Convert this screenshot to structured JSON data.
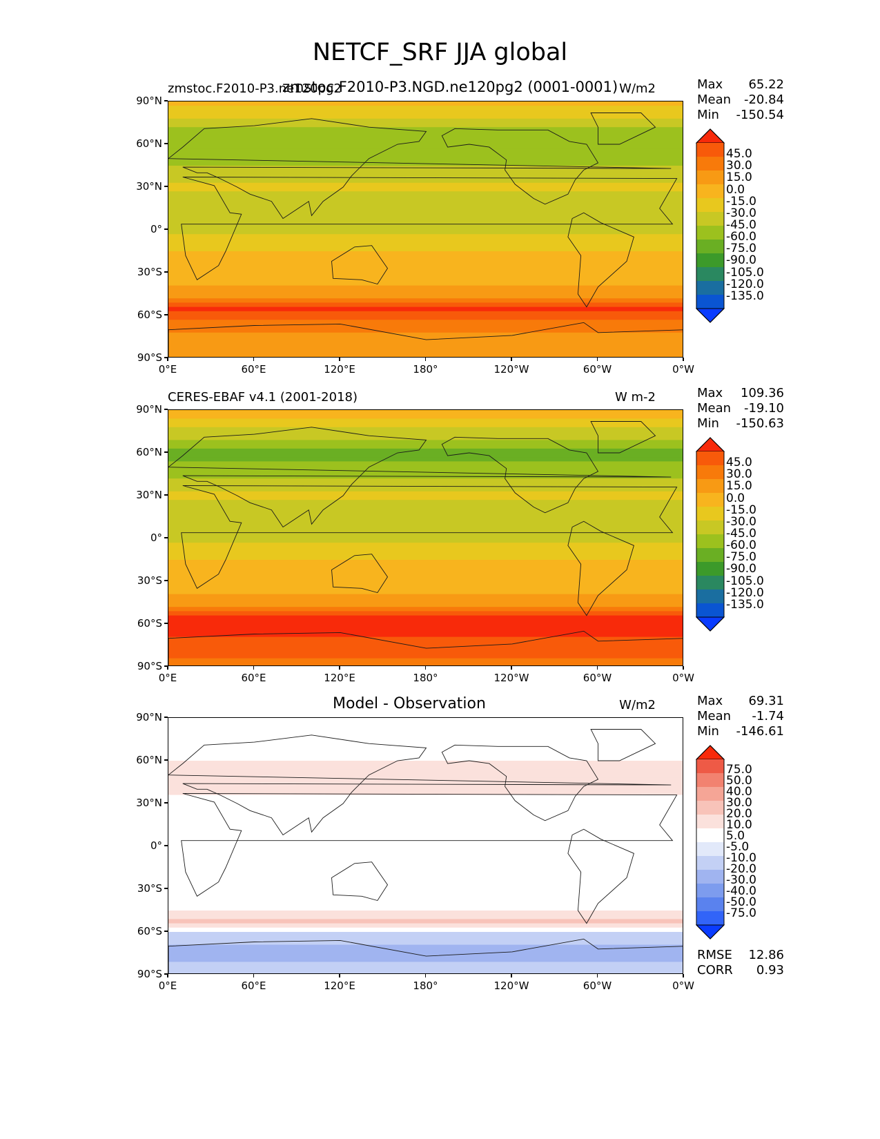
{
  "main_title": "NETCF_SRF JJA global",
  "colors": {
    "abs_scale": [
      "#0a3cff",
      "#0a55d2",
      "#1a6ea0",
      "#2a8860",
      "#3c9a2a",
      "#6aaf23",
      "#9cc11e",
      "#c8c824",
      "#e8c81e",
      "#f8b41e",
      "#f89a14",
      "#f87a0a",
      "#f85a0a",
      "#f82a0a"
    ],
    "diff_scale": [
      "#0a3cff",
      "#3264f8",
      "#5a82ee",
      "#7d9cee",
      "#a0b4f0",
      "#c3d0f5",
      "#e2e9fa",
      "#ffffff",
      "#fbe1dc",
      "#f8c3b9",
      "#f5a596",
      "#f28270",
      "#ee5a46",
      "#f82a0a"
    ]
  },
  "panels": [
    {
      "id": "model",
      "title": "zmstoc.F2010-P3.ne120pg2",
      "overlap_title": "zmstoc.F2010-P3.NGD.ne120pg2 (0001-0001)",
      "units": "W/m2",
      "stats": {
        "max_label": "Max",
        "max": "65.22",
        "mean_label": "Mean",
        "mean": "-20.84",
        "min_label": "Min",
        "min": "-150.54"
      },
      "colorbar_labels": [
        "45.0",
        "30.0",
        "15.0",
        "0.0",
        "-15.0",
        "-30.0",
        "-45.0",
        "-60.0",
        "-75.0",
        "-90.0",
        "-105.0",
        "-120.0",
        "-135.0"
      ]
    },
    {
      "id": "obs",
      "title": "CERES-EBAF v4.1 (2001-2018)",
      "units": "W m-2",
      "stats": {
        "max_label": "Max",
        "max": "109.36",
        "mean_label": "Mean",
        "mean": "-19.10",
        "min_label": "Min",
        "min": "-150.63"
      },
      "colorbar_labels": [
        "45.0",
        "30.0",
        "15.0",
        "0.0",
        "-15.0",
        "-30.0",
        "-45.0",
        "-60.0",
        "-75.0",
        "-90.0",
        "-105.0",
        "-120.0",
        "-135.0"
      ]
    },
    {
      "id": "diff",
      "title": "Model - Observation",
      "units": "W/m2",
      "stats": {
        "max_label": "Max",
        "max": "69.31",
        "mean_label": "Mean",
        "mean": "-1.74",
        "min_label": "Min",
        "min": "-146.61"
      },
      "colorbar_labels": [
        "75.0",
        "50.0",
        "40.0",
        "30.0",
        "20.0",
        "10.0",
        "5.0",
        "-5.0",
        "-10.0",
        "-20.0",
        "-30.0",
        "-40.0",
        "-50.0",
        "-75.0"
      ],
      "error_stats": {
        "rmse_label": "RMSE",
        "rmse": "12.86",
        "corr_label": "CORR",
        "corr": "0.93"
      }
    }
  ],
  "axes": {
    "lon_ticks": [
      "0°E",
      "60°E",
      "120°E",
      "180°",
      "120°W",
      "60°W",
      "0°W"
    ],
    "lat_ticks": [
      "90°N",
      "60°N",
      "30°N",
      "0°",
      "30°S",
      "60°S",
      "90°S"
    ]
  },
  "chart_data": [
    {
      "type": "heatmap",
      "title": "zmstoc.F2010-P3.ne120pg2",
      "units": "W/m2",
      "x": [
        0,
        60,
        120,
        180,
        240,
        300,
        360
      ],
      "y": [
        90,
        60,
        30,
        0,
        -30,
        -60,
        -90
      ],
      "xlim": [
        0,
        360
      ],
      "ylim": [
        -90,
        90
      ],
      "levels": [
        -135,
        -120,
        -105,
        -90,
        -75,
        -60,
        -45,
        -30,
        -15,
        0,
        15,
        30,
        45
      ],
      "max": 65.22,
      "mean": -20.84,
      "min": -150.54,
      "zonal_mean_profile": {
        "lat": [
          90,
          75,
          60,
          45,
          30,
          15,
          0,
          -15,
          -30,
          -45,
          -55,
          -60,
          -75,
          -90
        ],
        "value": [
          -5,
          -40,
          -60,
          -45,
          -25,
          -45,
          -35,
          -15,
          -10,
          5,
          50,
          40,
          5,
          10
        ]
      }
    },
    {
      "type": "heatmap",
      "title": "CERES-EBAF v4.1 (2001-2018)",
      "units": "W m-2",
      "x": [
        0,
        60,
        120,
        180,
        240,
        300,
        360
      ],
      "y": [
        90,
        60,
        30,
        0,
        -30,
        -60,
        -90
      ],
      "xlim": [
        0,
        360
      ],
      "ylim": [
        -90,
        90
      ],
      "levels": [
        -135,
        -120,
        -105,
        -90,
        -75,
        -60,
        -45,
        -30,
        -15,
        0,
        15,
        30,
        45
      ],
      "max": 109.36,
      "mean": -19.1,
      "min": -150.63,
      "zonal_mean_profile": {
        "lat": [
          90,
          75,
          60,
          45,
          30,
          15,
          0,
          -15,
          -30,
          -45,
          -55,
          -60,
          -75,
          -90
        ],
        "value": [
          -5,
          -35,
          -65,
          -50,
          -25,
          -45,
          -35,
          -15,
          -10,
          5,
          45,
          55,
          40,
          20
        ]
      }
    },
    {
      "type": "heatmap",
      "title": "Model - Observation",
      "units": "W/m2",
      "x": [
        0,
        60,
        120,
        180,
        240,
        300,
        360
      ],
      "y": [
        90,
        60,
        30,
        0,
        -30,
        -60,
        -90
      ],
      "xlim": [
        0,
        360
      ],
      "ylim": [
        -90,
        90
      ],
      "levels": [
        -75,
        -50,
        -40,
        -30,
        -20,
        -10,
        -5,
        5,
        10,
        20,
        30,
        40,
        50,
        75
      ],
      "max": 69.31,
      "mean": -1.74,
      "min": -146.61,
      "rmse": 12.86,
      "corr": 0.93,
      "zonal_mean_profile": {
        "lat": [
          90,
          75,
          60,
          45,
          30,
          15,
          0,
          -15,
          -30,
          -45,
          -55,
          -60,
          -75,
          -90
        ],
        "value": [
          0,
          -5,
          5,
          8,
          2,
          -5,
          0,
          -5,
          -3,
          5,
          12,
          -10,
          -25,
          -15
        ]
      }
    }
  ]
}
